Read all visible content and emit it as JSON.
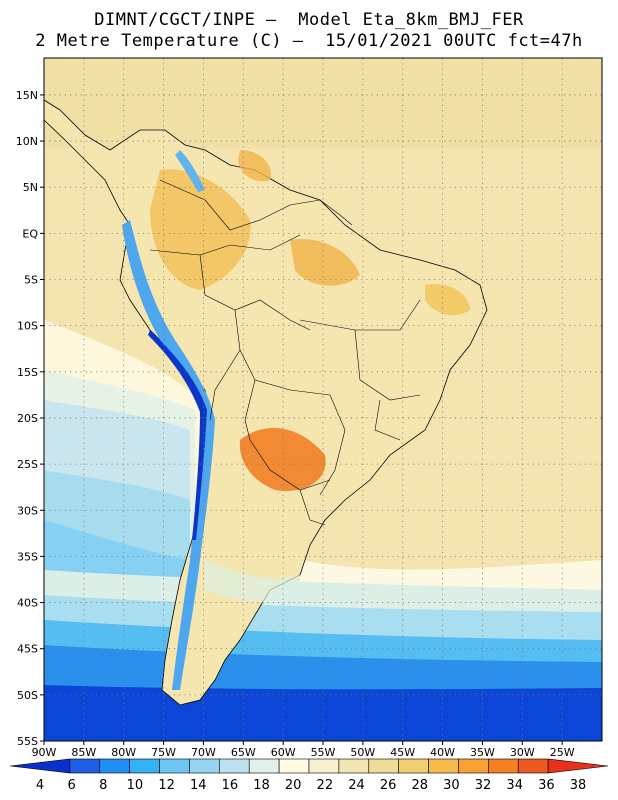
{
  "header": {
    "line1": "DIMNT/CGCT/INPE –  Model Eta_8km_BMJ_FER",
    "line2": "2 Metre Temperature (C) –  15/01/2021 00UTC fct=47h"
  },
  "map": {
    "lon_min": -90,
    "lon_max": -20,
    "lat_min": -55,
    "lat_max": 19,
    "lat_labels": [
      "15N",
      "10N",
      "5N",
      "EQ",
      "5S",
      "10S",
      "15S",
      "20S",
      "25S",
      "30S",
      "35S",
      "40S",
      "45S",
      "50S",
      "55S"
    ],
    "lat_values": [
      15,
      10,
      5,
      0,
      -5,
      -10,
      -15,
      -20,
      -25,
      -30,
      -35,
      -40,
      -45,
      -50,
      -55
    ],
    "lon_labels": [
      "90W",
      "85W",
      "80W",
      "75W",
      "70W",
      "65W",
      "60W",
      "55W",
      "50W",
      "45W",
      "40W",
      "35W",
      "30W",
      "25W"
    ],
    "lon_values": [
      -90,
      -85,
      -80,
      -75,
      -70,
      -65,
      -60,
      -55,
      -50,
      -45,
      -40,
      -35,
      -30,
      -25
    ]
  },
  "colorbar": {
    "unit": "C",
    "labels": [
      "4",
      "6",
      "8",
      "10",
      "12",
      "14",
      "16",
      "18",
      "20",
      "22",
      "24",
      "26",
      "28",
      "30",
      "32",
      "34",
      "36",
      "38"
    ],
    "colors": [
      "#0a2fcf",
      "#1e5ee6",
      "#1f8ef5",
      "#35b2f5",
      "#6dc6f2",
      "#97d4f2",
      "#bde2ef",
      "#def1ea",
      "#fffbe3",
      "#f7f0cd",
      "#f1e6b3",
      "#eedc99",
      "#f0cf72",
      "#f6bb4b",
      "#f8a033",
      "#f57f23",
      "#ee5a1d",
      "#e8301c"
    ]
  }
}
